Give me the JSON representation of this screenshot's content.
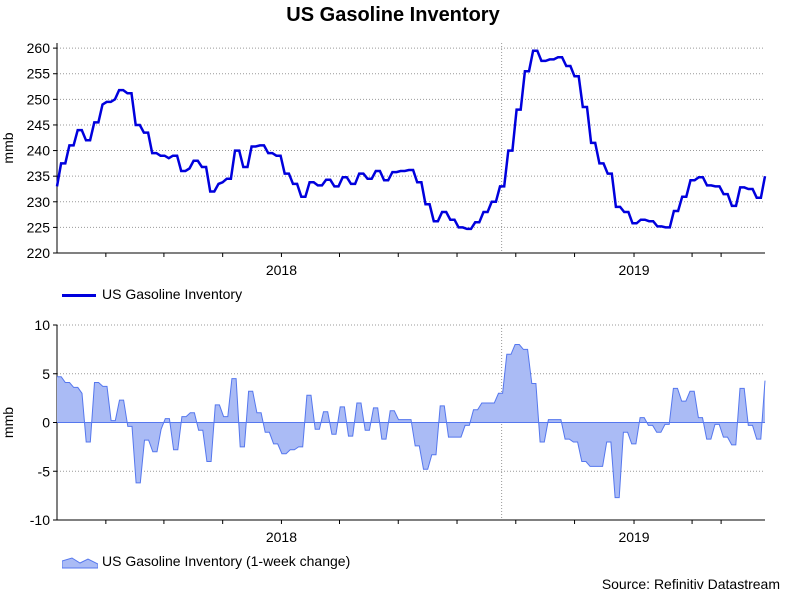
{
  "chart_data": [
    {
      "type": "line",
      "title": "US Gasoline Inventory",
      "ylabel": "mmb",
      "ylim": [
        220,
        261
      ],
      "yticks": [
        220,
        225,
        230,
        235,
        240,
        245,
        250,
        255,
        260
      ],
      "xticks": [
        "2018",
        "2019"
      ],
      "color": "#0000dd",
      "series": [
        {
          "name": "US Gasoline Inventory",
          "values": [
            233,
            237.5,
            237.5,
            241,
            241,
            244,
            244,
            242,
            242,
            245.5,
            245.5,
            249,
            249.5,
            249.5,
            250,
            251.8,
            251.8,
            251.2,
            251.2,
            245,
            245,
            243.5,
            243.5,
            239.5,
            239.5,
            239,
            239,
            238.5,
            239,
            239,
            236,
            236,
            236.5,
            238,
            238,
            236.8,
            236.8,
            232,
            232,
            233.5,
            233.8,
            234.5,
            234.5,
            240,
            240,
            236.8,
            236.8,
            240.8,
            240.8,
            241,
            241,
            239.5,
            239.5,
            239,
            239,
            235.5,
            235.5,
            233.5,
            233.5,
            231,
            231,
            233.8,
            233.8,
            233.2,
            233.2,
            234.3,
            234.3,
            233,
            233,
            234.8,
            234.8,
            233.5,
            233.5,
            235.5,
            235.5,
            234.5,
            234.5,
            236,
            236,
            234.2,
            234.2,
            235.8,
            235.8,
            236,
            236,
            236.2,
            236.2,
            233.8,
            233.8,
            229.5,
            229.5,
            226.2,
            226.2,
            228,
            228,
            226.5,
            226.5,
            225,
            225,
            224.7,
            224.7,
            226,
            226,
            228,
            228,
            230,
            230,
            233,
            233,
            240,
            240,
            248,
            248,
            255.5,
            255.5,
            259.5,
            259.5,
            257.5,
            257.5,
            257.8,
            257.8,
            258.2,
            258.2,
            256.5,
            256.5,
            254.5,
            254.5,
            248.5,
            248.5,
            241.5,
            241.5,
            237.5,
            237.5,
            235.5,
            235.5,
            229,
            229,
            228,
            228,
            225.8,
            225.8,
            226.5,
            226.5,
            226.2,
            226.2,
            225.2,
            225.2,
            225,
            225,
            228.2,
            228.2,
            231,
            231,
            234.2,
            234.2,
            234.8,
            234.8,
            233.2,
            233.2,
            233,
            233,
            231.5,
            231.5,
            229.2,
            229.2,
            232.8,
            232.8,
            232.5,
            232.5,
            230.8,
            230.8,
            235
          ]
        }
      ]
    },
    {
      "type": "area",
      "title": "",
      "ylabel": "mmb",
      "ylim": [
        -10,
        10
      ],
      "yticks": [
        -10,
        -5,
        0,
        5,
        10
      ],
      "xticks": [
        "2018",
        "2019"
      ],
      "color": "#5577ee",
      "fill": "#aabbf5",
      "series": [
        {
          "name": "US Gasoline Inventory (1-week change)",
          "values": [
            4.7,
            4.7,
            4.1,
            4.1,
            3.6,
            3.6,
            3.0,
            -2.0,
            -2.0,
            4.1,
            4.1,
            3.7,
            3.7,
            0.2,
            0.2,
            2.3,
            2.3,
            -0.4,
            -0.4,
            -6.2,
            -6.2,
            -1.8,
            -1.8,
            -3.0,
            -3.0,
            -0.7,
            0.4,
            0.4,
            -2.8,
            -2.8,
            0.6,
            0.6,
            1.0,
            1.0,
            -0.8,
            -0.8,
            -4.0,
            -4.0,
            1.8,
            1.8,
            0.6,
            0.6,
            4.5,
            4.5,
            -2.5,
            -2.5,
            3.2,
            3.2,
            1.0,
            1.0,
            -1.0,
            -1.0,
            -2.2,
            -2.2,
            -3.2,
            -3.2,
            -2.8,
            -2.8,
            -2.5,
            -2.5,
            2.8,
            2.8,
            -0.7,
            -0.7,
            1.1,
            1.1,
            -1.2,
            -1.2,
            1.6,
            1.6,
            -1.4,
            -1.4,
            2.0,
            2.0,
            -0.8,
            -0.8,
            1.5,
            1.5,
            -1.7,
            -1.7,
            1.2,
            1.2,
            0.3,
            0.3,
            0.3,
            0.3,
            -2.4,
            -2.4,
            -4.8,
            -4.8,
            -3.3,
            -3.3,
            1.7,
            1.7,
            -1.5,
            -1.5,
            -1.5,
            -1.5,
            -0.3,
            -0.3,
            1.3,
            1.3,
            2.0,
            2.0,
            2.0,
            2.0,
            3.0,
            3.0,
            7.0,
            7.0,
            8.0,
            8.0,
            7.5,
            7.5,
            4.0,
            4.0,
            -2.0,
            -2.0,
            0.3,
            0.3,
            0.3,
            0.3,
            -1.7,
            -1.7,
            -2.0,
            -2.0,
            -4.0,
            -4.0,
            -4.5,
            -4.5,
            -4.5,
            -4.5,
            -2.0,
            -2.0,
            -7.7,
            -7.7,
            -1.0,
            -1.0,
            -2.2,
            -2.2,
            0.5,
            0.5,
            -0.3,
            -0.3,
            -1.0,
            -1.0,
            -0.2,
            -0.2,
            3.5,
            3.5,
            2.2,
            2.2,
            3.2,
            3.2,
            0.5,
            0.5,
            -1.7,
            -1.7,
            -0.2,
            -0.2,
            -1.5,
            -1.5,
            -2.3,
            -2.3,
            3.5,
            3.5,
            -0.3,
            -0.3,
            -1.7,
            -1.7,
            4.3
          ]
        }
      ]
    }
  ],
  "legends": {
    "top": "US Gasoline Inventory",
    "bottom": "US Gasoline Inventory (1-week change)"
  },
  "source": "Source: Refinitiv Datastream"
}
